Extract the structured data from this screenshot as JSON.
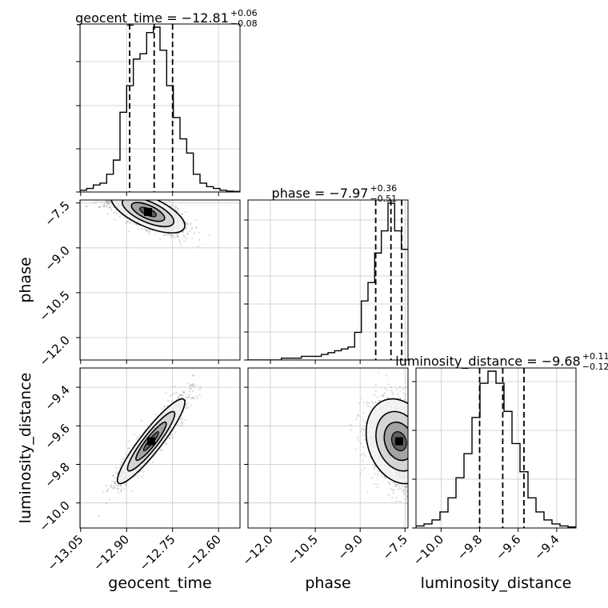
{
  "chart_data": {
    "type": "corner",
    "parameters": [
      {
        "name": "geocent_time",
        "median": -12.81,
        "plus": "0.06",
        "minus": "0.08",
        "range": [
          -13.052,
          -12.53
        ],
        "ticks": [
          -13.05,
          -12.9,
          -12.75,
          -12.6
        ],
        "tick_labels": [
          "−13.05",
          "−12.90",
          "−12.75",
          "−12.60"
        ],
        "quantiles": [
          -12.89,
          -12.81,
          -12.75
        ],
        "title_value": "−12.81",
        "title_plus": "+0.06",
        "title_minus": "−0.08"
      },
      {
        "name": "phase",
        "median": -7.97,
        "plus": "0.36",
        "minus": "0.51",
        "range": [
          -12.75,
          -7.4
        ],
        "ticks": [
          -12.0,
          -10.5,
          -9.0,
          -7.5
        ],
        "tick_labels": [
          "−12.0",
          "−10.5",
          "−9.0",
          "−7.5"
        ],
        "quantiles": [
          -8.48,
          -7.97,
          -7.61
        ],
        "title_value": "−7.97",
        "title_plus": "+0.36",
        "title_minus": "−0.51"
      },
      {
        "name": "luminosity_distance",
        "median": -9.68,
        "plus": "0.11",
        "minus": "0.12",
        "range": [
          -10.13,
          -9.3
        ],
        "ticks": [
          -10.0,
          -9.8,
          -9.6,
          -9.4
        ],
        "tick_labels": [
          "−10.0",
          "−9.8",
          "−9.6",
          "−9.4"
        ],
        "quantiles": [
          -9.8,
          -9.68,
          -9.57
        ],
        "title_value": "−9.68",
        "title_plus": "+0.11",
        "title_minus": "−0.12"
      }
    ],
    "histograms": [
      {
        "param": "geocent_time",
        "counts": [
          0.01,
          0.02,
          0.04,
          0.05,
          0.1,
          0.18,
          0.45,
          0.6,
          0.75,
          0.78,
          0.9,
          0.93,
          0.8,
          0.6,
          0.42,
          0.3,
          0.22,
          0.1,
          0.05,
          0.03,
          0.02,
          0.01,
          0.005,
          0.003
        ]
      },
      {
        "param": "phase",
        "counts": [
          0.0,
          0.0,
          0.0,
          0.0,
          0.0,
          0.01,
          0.01,
          0.01,
          0.02,
          0.02,
          0.02,
          0.03,
          0.04,
          0.05,
          0.06,
          0.07,
          0.15,
          0.32,
          0.42,
          0.58,
          0.7,
          0.85,
          0.7,
          0.6
        ]
      },
      {
        "param": "luminosity_distance",
        "counts": [
          0.01,
          0.02,
          0.04,
          0.08,
          0.15,
          0.25,
          0.37,
          0.55,
          0.72,
          0.78,
          0.72,
          0.58,
          0.42,
          0.28,
          0.15,
          0.08,
          0.04,
          0.02,
          0.01,
          0.005
        ]
      }
    ],
    "scatter_2d": [
      {
        "x": "geocent_time",
        "y": "phase",
        "density_peak": [
          -12.8,
          -7.75
        ]
      },
      {
        "x": "geocent_time",
        "y": "luminosity_distance",
        "density_peak": [
          -12.8,
          -9.68
        ]
      },
      {
        "x": "phase",
        "y": "luminosity_distance",
        "density_peak": [
          -7.7,
          -9.7
        ]
      }
    ],
    "ylabels": [
      "phase",
      "luminosity_distance"
    ],
    "xlabels": [
      "geocent_time",
      "phase",
      "luminosity_distance"
    ],
    "grid": true
  }
}
